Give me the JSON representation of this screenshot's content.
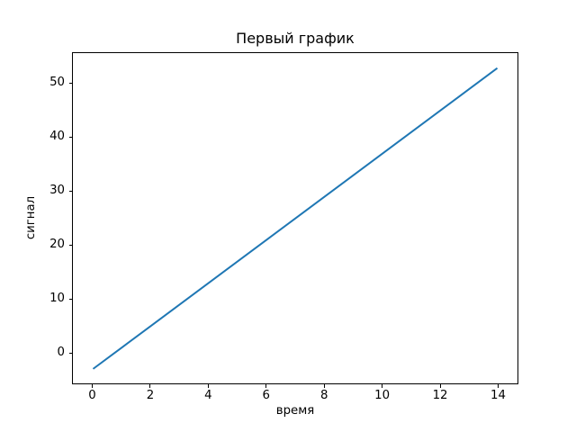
{
  "chart_data": {
    "type": "line",
    "title": "Первый график",
    "xlabel": "время",
    "ylabel": "сигнал",
    "x": [
      0,
      1,
      2,
      3,
      4,
      5,
      6,
      7,
      8,
      9,
      10,
      11,
      12,
      13,
      14
    ],
    "y": [
      -3,
      1,
      5,
      9,
      13,
      17,
      21,
      25,
      29,
      33,
      37,
      41,
      45,
      49,
      53
    ],
    "xticks": [
      0,
      2,
      4,
      6,
      8,
      10,
      12,
      14
    ],
    "yticks": [
      0,
      10,
      20,
      30,
      40,
      50
    ],
    "xlim": [
      -0.7,
      14.7
    ],
    "ylim": [
      -5.8,
      55.8
    ],
    "line_color": "#1f77b4",
    "line_width": 2,
    "grid": false,
    "legend_position": "none",
    "background_color": "#ffffff",
    "frame_color": "#000000"
  }
}
